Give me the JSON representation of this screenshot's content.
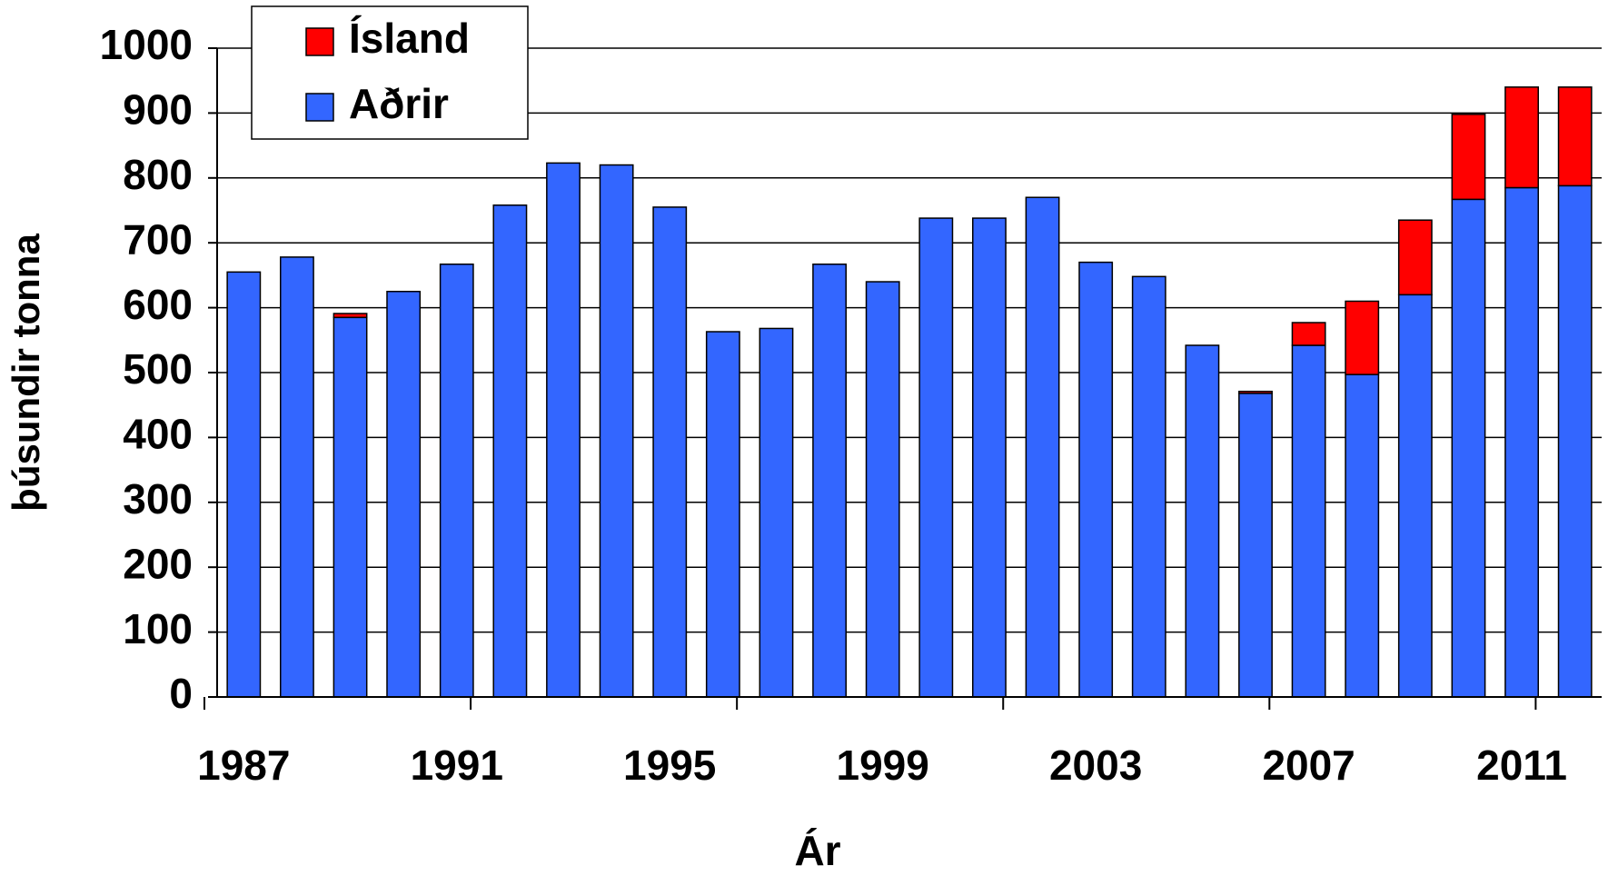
{
  "chart_data": {
    "type": "stacked_bar",
    "x_label": "Ár",
    "y_label": "þúsundir tonna",
    "categories": [
      "1987",
      null,
      null,
      null,
      "1991",
      null,
      null,
      null,
      "1995",
      null,
      null,
      null,
      "1999",
      null,
      null,
      null,
      "2003",
      null,
      null,
      null,
      "2007",
      null,
      null,
      null,
      "2011",
      null
    ],
    "series": [
      {
        "name": "Aðrir",
        "color": "#3366ff",
        "values": [
          655,
          678,
          585,
          625,
          667,
          758,
          823,
          820,
          755,
          563,
          568,
          667,
          640,
          738,
          738,
          770,
          670,
          648,
          542,
          468,
          542,
          497,
          620,
          767,
          785,
          788
        ]
      },
      {
        "name": "Ísland",
        "color": "#ff0000",
        "values": [
          0,
          0,
          6,
          0,
          0,
          0,
          0,
          0,
          0,
          0,
          0,
          0,
          0,
          0,
          0,
          0,
          0,
          0,
          0,
          3,
          35,
          113,
          115,
          131,
          155,
          152
        ]
      }
    ],
    "ylim": [
      0,
      1000
    ],
    "yticks": [
      0,
      100,
      200,
      300,
      400,
      500,
      600,
      700,
      800,
      900,
      1000
    ],
    "grid": true,
    "legend": "top-left"
  }
}
